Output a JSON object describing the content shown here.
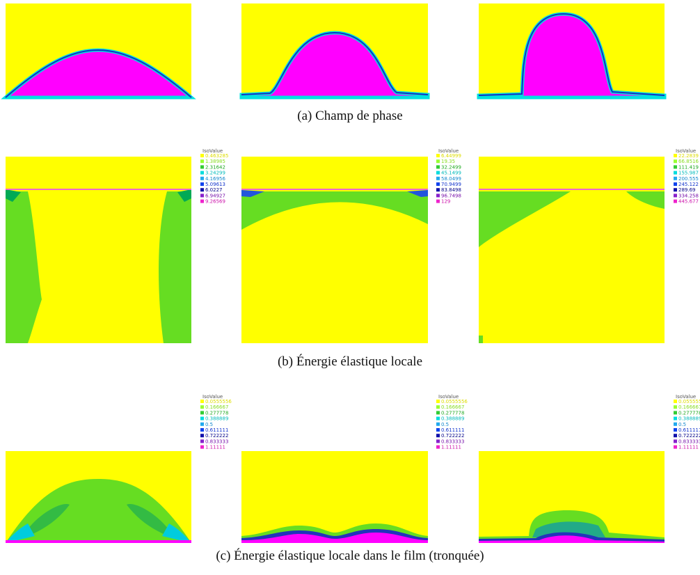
{
  "rows": [
    {
      "caption": "(a) Champ de phase"
    },
    {
      "caption": "(b) Énergie élastique locale",
      "legends": [
        {
          "title": "IsoValue",
          "values": [
            "0.463285",
            "1.38985",
            "2.31642",
            "3.24299",
            "4.16956",
            "5.09613",
            "6.0227",
            "6.94927",
            "9.26569"
          ]
        },
        {
          "title": "IsoValue",
          "values": [
            "6.44999",
            "19.35",
            "32.2499",
            "45.1499",
            "58.0499",
            "70.9499",
            "83.8498",
            "96.7498",
            "129"
          ]
        },
        {
          "title": "IsoValue",
          "values": [
            "22.2839",
            "66.8516",
            "111.419",
            "155.987",
            "200.555",
            "245.122",
            "289.69",
            "334.258",
            "445.677"
          ]
        }
      ]
    },
    {
      "caption": "(c) Énergie élastique locale dans le film (tronquée)",
      "legends": [
        {
          "title": "IsoValue",
          "values": [
            "0.0555556",
            "0.166667",
            "0.277778",
            "0.388889",
            "0.5",
            "0.611111",
            "0.722222",
            "0.833333",
            "1.11111"
          ]
        },
        {
          "title": "IsoValue",
          "values": [
            "0.0555556",
            "0.166667",
            "0.277778",
            "0.388889",
            "0.5",
            "0.611111",
            "0.722222",
            "0.833333",
            "1.11111"
          ]
        },
        {
          "title": "IsoValue",
          "values": [
            "0.0555556",
            "0.166667",
            "0.277778",
            "0.388889",
            "0.5",
            "0.611111",
            "0.722222",
            "0.833333",
            "1.11111"
          ]
        }
      ]
    }
  ]
}
